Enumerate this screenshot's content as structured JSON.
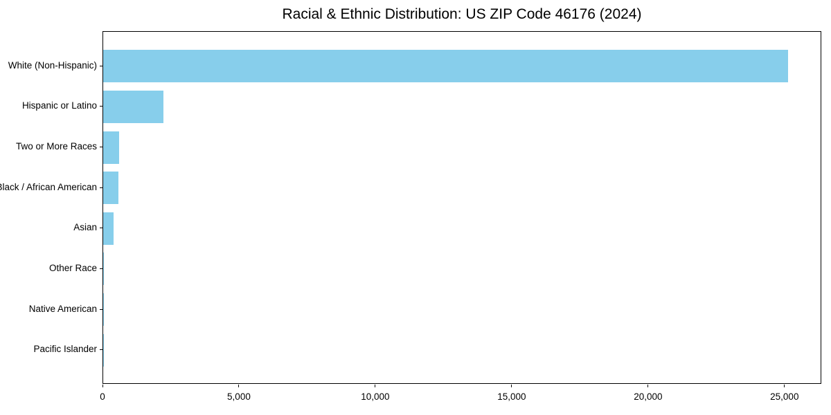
{
  "chart_data": {
    "type": "bar",
    "orientation": "horizontal",
    "title": "Racial & Ethnic Distribution: US ZIP Code 46176 (2024)",
    "categories": [
      "White (Non-Hispanic)",
      "Hispanic or Latino",
      "Two or More Races",
      "Black / African American",
      "Asian",
      "Other Race",
      "Native American",
      "Pacific Islander"
    ],
    "values": [
      25100,
      2200,
      580,
      550,
      390,
      30,
      15,
      5
    ],
    "xlabel": "",
    "ylabel": "",
    "xlim": [
      0,
      26350
    ],
    "xticks": [
      0,
      5000,
      10000,
      15000,
      20000,
      25000
    ],
    "xtick_labels": [
      "0",
      "5,000",
      "10,000",
      "15,000",
      "20,000",
      "25,000"
    ],
    "grid": false,
    "legend": null,
    "colors": {
      "bar": "#87CEEB",
      "axis": "#000000",
      "text": "#000000",
      "background": "#ffffff"
    }
  }
}
